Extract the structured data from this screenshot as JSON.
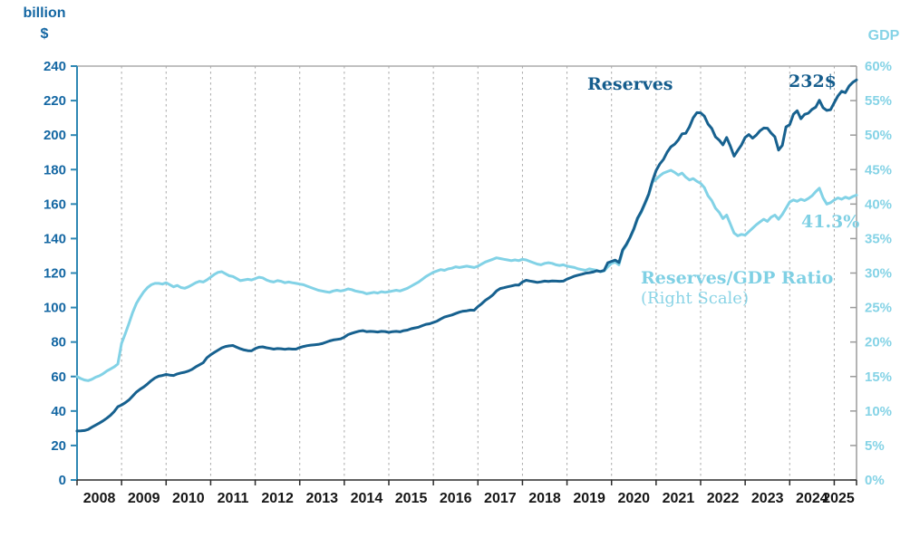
{
  "header": {
    "left_axis_unit_line1": "billion",
    "left_axis_unit_line2": "$",
    "right_axis_unit": "GDP"
  },
  "annotations": {
    "reserves_label": "Reserves",
    "reserves_end_value": "232$",
    "ratio_end_value": "41.3%",
    "ratio_label_line1": "Reserves/GDP Ratio",
    "ratio_label_line2": "(Right Scale)"
  },
  "chart_data": {
    "type": "line",
    "title": "",
    "x_start_year": 2008,
    "x_frequency": "monthly",
    "x_tick_labels": [
      2008,
      2009,
      2010,
      2011,
      2012,
      2013,
      2014,
      2015,
      2016,
      2017,
      2018,
      2019,
      2020,
      2021,
      2022,
      2023,
      2024,
      2025
    ],
    "left_axis": {
      "label": "billion $",
      "range": [
        0,
        240
      ],
      "tick_step": 20,
      "ticks": [
        0,
        20,
        40,
        60,
        80,
        100,
        120,
        140,
        160,
        180,
        200,
        220,
        240
      ]
    },
    "right_axis": {
      "label": "GDP",
      "range": [
        0,
        60
      ],
      "tick_step": 5,
      "tick_labels": [
        "0%",
        "5%",
        "10%",
        "15%",
        "20%",
        "25%",
        "30%",
        "35%",
        "40%",
        "45%",
        "50%",
        "55%",
        "60%"
      ]
    },
    "grid": "vertical-dashed-yearly",
    "legend_position": "inline-annotations",
    "colors": {
      "reserves_line": "#17618f",
      "ratio_line": "#82d2e6",
      "left_axis": "#2e87b3",
      "right_axis": "#9b9b9b",
      "bottom_axis": "#2b2b2b",
      "gridline": "#a9a9a9",
      "left_tick_text": "#1467a3",
      "right_tick_text": "#85d3e6",
      "x_tick_text": "#161616"
    },
    "series": [
      {
        "name": "Reserves",
        "axis": "left",
        "color": "#17618f",
        "end_label": "232$",
        "values": [
          28.4,
          28.5,
          28.7,
          29.3,
          30.6,
          31.8,
          33.0,
          34.3,
          35.8,
          37.5,
          39.7,
          42.5,
          43.5,
          44.8,
          46.4,
          48.7,
          51.0,
          52.6,
          54.0,
          55.7,
          57.6,
          59.2,
          60.2,
          60.6,
          61.2,
          60.8,
          60.6,
          61.5,
          62.1,
          62.5,
          63.2,
          64.2,
          65.6,
          66.8,
          68.0,
          70.9,
          72.6,
          74.0,
          75.3,
          76.6,
          77.4,
          77.8,
          78.0,
          77.0,
          76.1,
          75.4,
          75.0,
          74.9,
          76.2,
          77.0,
          77.2,
          76.7,
          76.3,
          75.9,
          76.2,
          76.1,
          75.8,
          76.1,
          75.9,
          75.9,
          76.8,
          77.4,
          77.9,
          78.2,
          78.4,
          78.6,
          79.1,
          79.8,
          80.6,
          81.2,
          81.5,
          81.8,
          82.8,
          84.3,
          85.0,
          85.7,
          86.3,
          86.6,
          86.0,
          86.2,
          86.1,
          85.8,
          86.2,
          86.1,
          85.6,
          86.0,
          86.2,
          85.9,
          86.6,
          86.9,
          87.7,
          88.2,
          88.6,
          89.5,
          90.3,
          90.6,
          91.3,
          92.1,
          93.4,
          94.5,
          95.1,
          95.7,
          96.5,
          97.3,
          97.9,
          98.1,
          98.5,
          98.4,
          100.5,
          102.2,
          104.2,
          105.6,
          107.3,
          109.6,
          111.0,
          111.5,
          112.0,
          112.5,
          113.0,
          113.0,
          114.8,
          115.8,
          115.4,
          115.0,
          114.6,
          114.9,
          115.3,
          115.1,
          115.4,
          115.3,
          115.2,
          115.3,
          116.5,
          117.3,
          118.2,
          118.8,
          119.3,
          119.9,
          120.2,
          120.6,
          121.3,
          120.9,
          121.5,
          126.0,
          126.8,
          127.5,
          126.1,
          133.5,
          136.7,
          140.8,
          145.7,
          151.9,
          155.7,
          160.6,
          165.8,
          173.3,
          179.5,
          183.3,
          185.9,
          190.1,
          193.2,
          194.7,
          197.2,
          200.7,
          201.1,
          204.8,
          210.0,
          213.0,
          212.9,
          211.0,
          206.4,
          203.8,
          199.0,
          197.1,
          194.3,
          198.6,
          193.6,
          187.8,
          191.1,
          194.2,
          198.6,
          200.3,
          198.2,
          200.0,
          202.5,
          204.1,
          204.0,
          201.2,
          199.0,
          191.3,
          194.0,
          204.7,
          206.1,
          212.1,
          214.1,
          209.5,
          212.0,
          212.7,
          214.9,
          216.2,
          220.2,
          215.9,
          214.3,
          214.7,
          218.8,
          222.7,
          225.4,
          224.6,
          228.4,
          230.6,
          232.0
        ]
      },
      {
        "name": "Reserves/GDP Ratio (Right Scale)",
        "axis": "right",
        "color": "#82d2e6",
        "end_label": "41.3%",
        "values": [
          15.0,
          14.7,
          14.5,
          14.4,
          14.6,
          14.9,
          15.1,
          15.4,
          15.8,
          16.1,
          16.4,
          16.8,
          19.8,
          21.2,
          22.7,
          24.3,
          25.6,
          26.5,
          27.3,
          27.9,
          28.3,
          28.5,
          28.5,
          28.4,
          28.6,
          28.3,
          28.0,
          28.2,
          27.9,
          27.8,
          28.0,
          28.3,
          28.6,
          28.8,
          28.7,
          29.0,
          29.4,
          29.8,
          30.1,
          30.2,
          29.9,
          29.6,
          29.5,
          29.2,
          28.9,
          29.0,
          29.1,
          29.0,
          29.2,
          29.4,
          29.3,
          29.0,
          28.8,
          28.7,
          28.9,
          28.8,
          28.6,
          28.7,
          28.6,
          28.5,
          28.4,
          28.3,
          28.1,
          27.9,
          27.7,
          27.5,
          27.4,
          27.3,
          27.2,
          27.4,
          27.5,
          27.4,
          27.5,
          27.7,
          27.6,
          27.4,
          27.3,
          27.2,
          27.0,
          27.1,
          27.2,
          27.1,
          27.3,
          27.2,
          27.3,
          27.4,
          27.5,
          27.4,
          27.6,
          27.8,
          28.1,
          28.4,
          28.7,
          29.1,
          29.5,
          29.8,
          30.1,
          30.3,
          30.5,
          30.4,
          30.6,
          30.7,
          30.9,
          30.8,
          30.9,
          31.0,
          30.9,
          30.8,
          31.0,
          31.3,
          31.6,
          31.8,
          32.0,
          32.2,
          32.1,
          32.0,
          31.9,
          31.8,
          31.9,
          31.8,
          32.0,
          31.9,
          31.7,
          31.5,
          31.3,
          31.2,
          31.4,
          31.5,
          31.4,
          31.2,
          31.1,
          31.2,
          31.0,
          30.9,
          30.8,
          30.6,
          30.5,
          30.4,
          30.6,
          30.5,
          30.4,
          30.2,
          30.3,
          30.9,
          31.4,
          31.6,
          31.2,
          33.2,
          34.0,
          35.1,
          36.3,
          37.8,
          38.8,
          40.0,
          41.3,
          43.2,
          43.6,
          44.1,
          44.5,
          44.7,
          44.9,
          44.6,
          44.2,
          44.5,
          43.9,
          43.5,
          43.7,
          43.3,
          43.0,
          42.4,
          41.2,
          40.5,
          39.4,
          38.8,
          37.9,
          38.4,
          37.1,
          35.8,
          35.4,
          35.6,
          35.5,
          36.0,
          36.5,
          37.0,
          37.4,
          37.8,
          37.5,
          38.1,
          38.4,
          37.8,
          38.5,
          39.4,
          40.3,
          40.6,
          40.4,
          40.7,
          40.5,
          40.8,
          41.2,
          41.8,
          42.3,
          40.9,
          40.0,
          40.2,
          40.6,
          40.9,
          40.7,
          41.0,
          40.8,
          41.1,
          41.3
        ]
      }
    ]
  }
}
